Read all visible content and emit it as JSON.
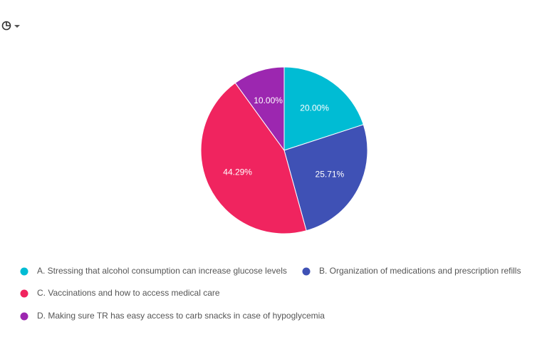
{
  "chart_data": {
    "type": "pie",
    "categories": [
      "A. Stressing that alcohol consumption can increase glucose levels",
      "B. Organization of medications and prescription refills",
      "C. Vaccinations and how to access medical care",
      "D. Making sure TR has easy access to carb snacks in case of hypoglycemia"
    ],
    "values": [
      20,
      25.71,
      44.29,
      10
    ],
    "value_labels": [
      "20.00%",
      "25.71%",
      "44.29%",
      "10.00%"
    ],
    "colors": [
      "#00bcd4",
      "#3f51b5",
      "#f0245f",
      "#9c27b0"
    ],
    "legend": "bottom"
  }
}
